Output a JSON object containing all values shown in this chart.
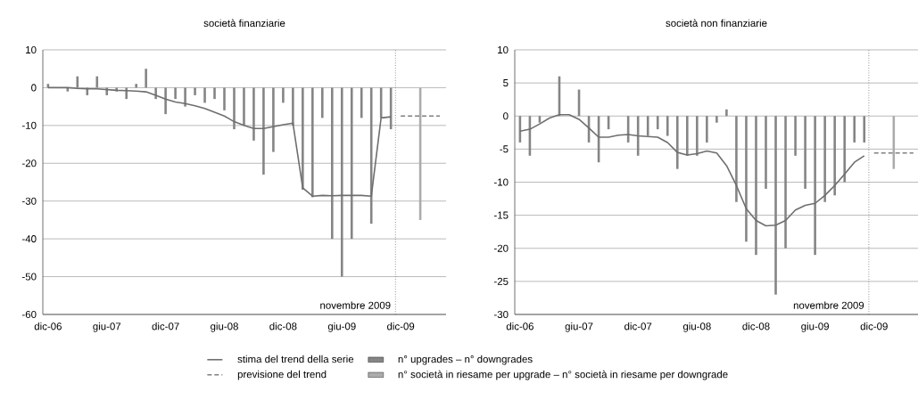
{
  "chart_data": [
    {
      "type": "bar",
      "title": "società finanziarie",
      "x": [
        "2006-12",
        "2007-01",
        "2007-02",
        "2007-03",
        "2007-04",
        "2007-05",
        "2007-06",
        "2007-07",
        "2007-08",
        "2007-09",
        "2007-10",
        "2007-11",
        "2007-12",
        "2008-01",
        "2008-02",
        "2008-03",
        "2008-04",
        "2008-05",
        "2008-06",
        "2008-07",
        "2008-08",
        "2008-09",
        "2008-10",
        "2008-11",
        "2008-12",
        "2009-01",
        "2009-02",
        "2009-03",
        "2009-04",
        "2009-05",
        "2009-06",
        "2009-07",
        "2009-08",
        "2009-09",
        "2009-10",
        "2009-11"
      ],
      "series": [
        {
          "name": "stima del trend della serie",
          "type": "line",
          "color": "#6e6e6e",
          "values": [
            0,
            0,
            0,
            -0.2,
            -0.3,
            -0.3,
            -0.5,
            -0.7,
            -0.8,
            -0.9,
            -1.1,
            -2,
            -3,
            -3.8,
            -4.2,
            -4.8,
            -5.5,
            -6.5,
            -7.5,
            -9,
            -10,
            -10.8,
            -10.8,
            -10.3,
            -9.8,
            -9.4,
            -26.5,
            -28.7,
            -28.5,
            -28.6,
            -28.5,
            -28.5,
            -28.5,
            -28.7,
            -8,
            -7.7
          ]
        },
        {
          "name": "n° upgrades – n° downgrades",
          "color": "#858585",
          "values": [
            1,
            0,
            -1,
            3,
            -2,
            3,
            -2,
            -1,
            -3,
            1,
            5,
            -3,
            -7,
            -3,
            -5,
            -2,
            -4,
            -3,
            -6,
            -11,
            -10,
            -14,
            -23,
            -17,
            -4,
            -10,
            -27,
            -29,
            -8,
            -40,
            -50,
            -40,
            -8,
            -36,
            -8,
            -11
          ]
        },
        {
          "name": "previsione del trend",
          "type": "line",
          "line_style": "dashed",
          "color": "#808080",
          "x": [
            "2009-12",
            "2010-04"
          ],
          "values": [
            -7.5,
            -7.5
          ]
        },
        {
          "name": "n° società in riesame per upgrade – n° società in riesame per downgrade",
          "color": "#ababab",
          "x": [
            "2010-02"
          ],
          "values": [
            -35
          ]
        }
      ],
      "xlim": [
        "2006-11-15",
        "2010-04-20"
      ],
      "xticks": [
        {
          "value": "2006-12",
          "label": "dic-06"
        },
        {
          "value": "2007-06",
          "label": "giu-07"
        },
        {
          "value": "2007-12",
          "label": "dic-07"
        },
        {
          "value": "2008-06",
          "label": "giu-08"
        },
        {
          "value": "2008-12",
          "label": "dic-08"
        },
        {
          "value": "2009-06",
          "label": "giu-09"
        },
        {
          "value": "2009-12",
          "label": "dic-09"
        }
      ],
      "ylim": [
        -60,
        10
      ],
      "yticks": [
        -60,
        -50,
        -40,
        -30,
        -20,
        -10,
        0,
        10
      ],
      "grid": "y",
      "legend": "bottom",
      "ref_lines": [
        {
          "axis": "x",
          "value": "2009-11-15",
          "label": "novembre 2009",
          "line_style": "dotted",
          "color": "#555555"
        }
      ]
    },
    {
      "type": "bar",
      "title": "società non finanziarie",
      "x": [
        "2006-12",
        "2007-01",
        "2007-02",
        "2007-03",
        "2007-04",
        "2007-05",
        "2007-06",
        "2007-07",
        "2007-08",
        "2007-09",
        "2007-10",
        "2007-11",
        "2007-12",
        "2008-01",
        "2008-02",
        "2008-03",
        "2008-04",
        "2008-05",
        "2008-06",
        "2008-07",
        "2008-08",
        "2008-09",
        "2008-10",
        "2008-11",
        "2008-12",
        "2009-01",
        "2009-02",
        "2009-03",
        "2009-04",
        "2009-05",
        "2009-06",
        "2009-07",
        "2009-08",
        "2009-09",
        "2009-10",
        "2009-11"
      ],
      "series": [
        {
          "type": "line",
          "color": "#6e6e6e",
          "values": [
            -2.3,
            -2,
            -1.2,
            -0.3,
            0.2,
            0.2,
            -0.5,
            -1.8,
            -3.2,
            -3.2,
            -2.9,
            -2.8,
            -3,
            -3.1,
            -3.2,
            -4,
            -5.5,
            -5.9,
            -5.7,
            -5.3,
            -5.6,
            -7.5,
            -10.5,
            -14,
            -15.8,
            -16.6,
            -16.5,
            -15.8,
            -14.2,
            -13.5,
            -13.2,
            -12,
            -10.5,
            -8.8,
            -7,
            -6
          ]
        },
        {
          "color": "#858585",
          "values": [
            -4,
            -6,
            -1,
            0,
            6,
            0,
            4,
            -4,
            -7,
            -2,
            0,
            -4,
            -6,
            -3,
            -2,
            -3,
            -8,
            -6,
            -6,
            -4,
            -1,
            1,
            -13,
            -19,
            -21,
            -11,
            -27,
            -20,
            -6,
            -11,
            -21,
            -13,
            -12,
            -10,
            -4,
            -4
          ]
        },
        {
          "type": "line",
          "line_style": "dashed",
          "color": "#808080",
          "x": [
            "2009-12",
            "2010-04"
          ],
          "values": [
            -5.6,
            -5.6
          ]
        },
        {
          "color": "#ababab",
          "x": [
            "2010-02"
          ],
          "values": [
            -8
          ]
        }
      ],
      "xlim": [
        "2006-11-15",
        "2010-04-15"
      ],
      "xticks": [
        {
          "value": "2006-12",
          "label": "dic-06"
        },
        {
          "value": "2007-06",
          "label": "giu-07"
        },
        {
          "value": "2007-12",
          "label": "dic-07"
        },
        {
          "value": "2008-06",
          "label": "giu-08"
        },
        {
          "value": "2008-12",
          "label": "dic-08"
        },
        {
          "value": "2009-06",
          "label": "giu-09"
        },
        {
          "value": "2009-12",
          "label": "dic-09"
        }
      ],
      "ylim": [
        -30,
        10
      ],
      "yticks": [
        -30,
        -25,
        -20,
        -15,
        -10,
        -5,
        0,
        5,
        10
      ],
      "grid": "y",
      "ref_lines": [
        {
          "axis": "x",
          "value": "2009-11-15",
          "label": "novembre 2009",
          "line_style": "dotted",
          "color": "#555555"
        }
      ]
    }
  ]
}
